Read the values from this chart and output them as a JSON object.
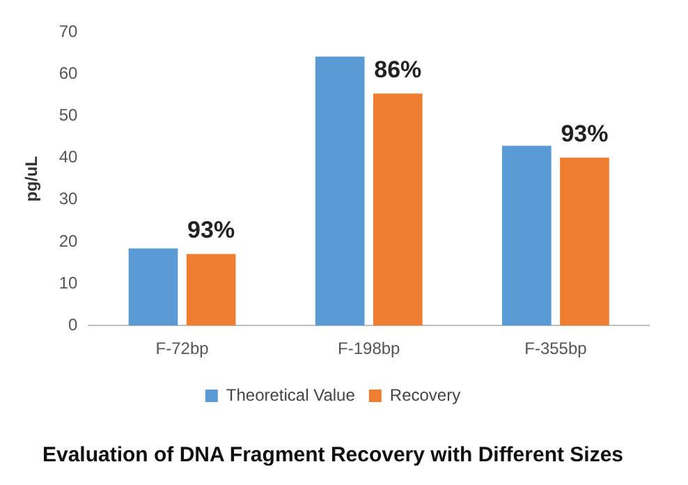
{
  "chart_data": {
    "type": "bar",
    "title": "Evaluation of DNA Fragment Recovery with Different Sizes",
    "ylabel": "pg/uL",
    "categories": [
      "F-72bp",
      "F-198bp",
      "F-355bp"
    ],
    "series": [
      {
        "name": "Theoretical Value",
        "color": "#5b9bd5",
        "values": [
          18.4,
          64.2,
          42.9
        ]
      },
      {
        "name": "Recovery",
        "color": "#ed7d31",
        "values": [
          17.1,
          55.4,
          40.1
        ]
      }
    ],
    "annotations": [
      {
        "text": "93%",
        "x": "F-72bp",
        "y": 17.1
      },
      {
        "text": "86%",
        "x": "F-198bp",
        "y": 55.4
      },
      {
        "text": "93%",
        "x": "F-355bp",
        "y": 40.1
      }
    ],
    "ylim": [
      0,
      70
    ],
    "yticks": [
      0,
      10,
      20,
      30,
      40,
      50,
      60,
      70
    ],
    "grid": false,
    "legend": "bottom"
  }
}
